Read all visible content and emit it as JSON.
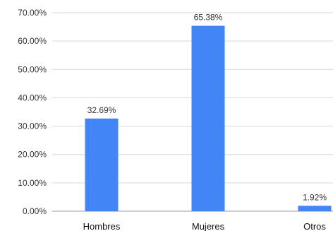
{
  "chart_data": {
    "type": "bar",
    "title": "",
    "xlabel": "",
    "ylabel": "",
    "categories": [
      "Hombres",
      "Mujeres",
      "Otros"
    ],
    "values": [
      32.69,
      65.38,
      1.92
    ],
    "data_labels": [
      "32.69%",
      "65.38%",
      "1.92%"
    ],
    "ylim": [
      0,
      70
    ],
    "y_ticks": [
      0,
      10,
      20,
      30,
      40,
      50,
      60,
      70
    ],
    "y_tick_labels": [
      "0.00%",
      "10.00%",
      "20.00%",
      "30.00%",
      "40.00%",
      "50.00%",
      "60.00%",
      "70.00%"
    ],
    "grid": true,
    "legend": "none",
    "bar_color": "#4285f4"
  }
}
